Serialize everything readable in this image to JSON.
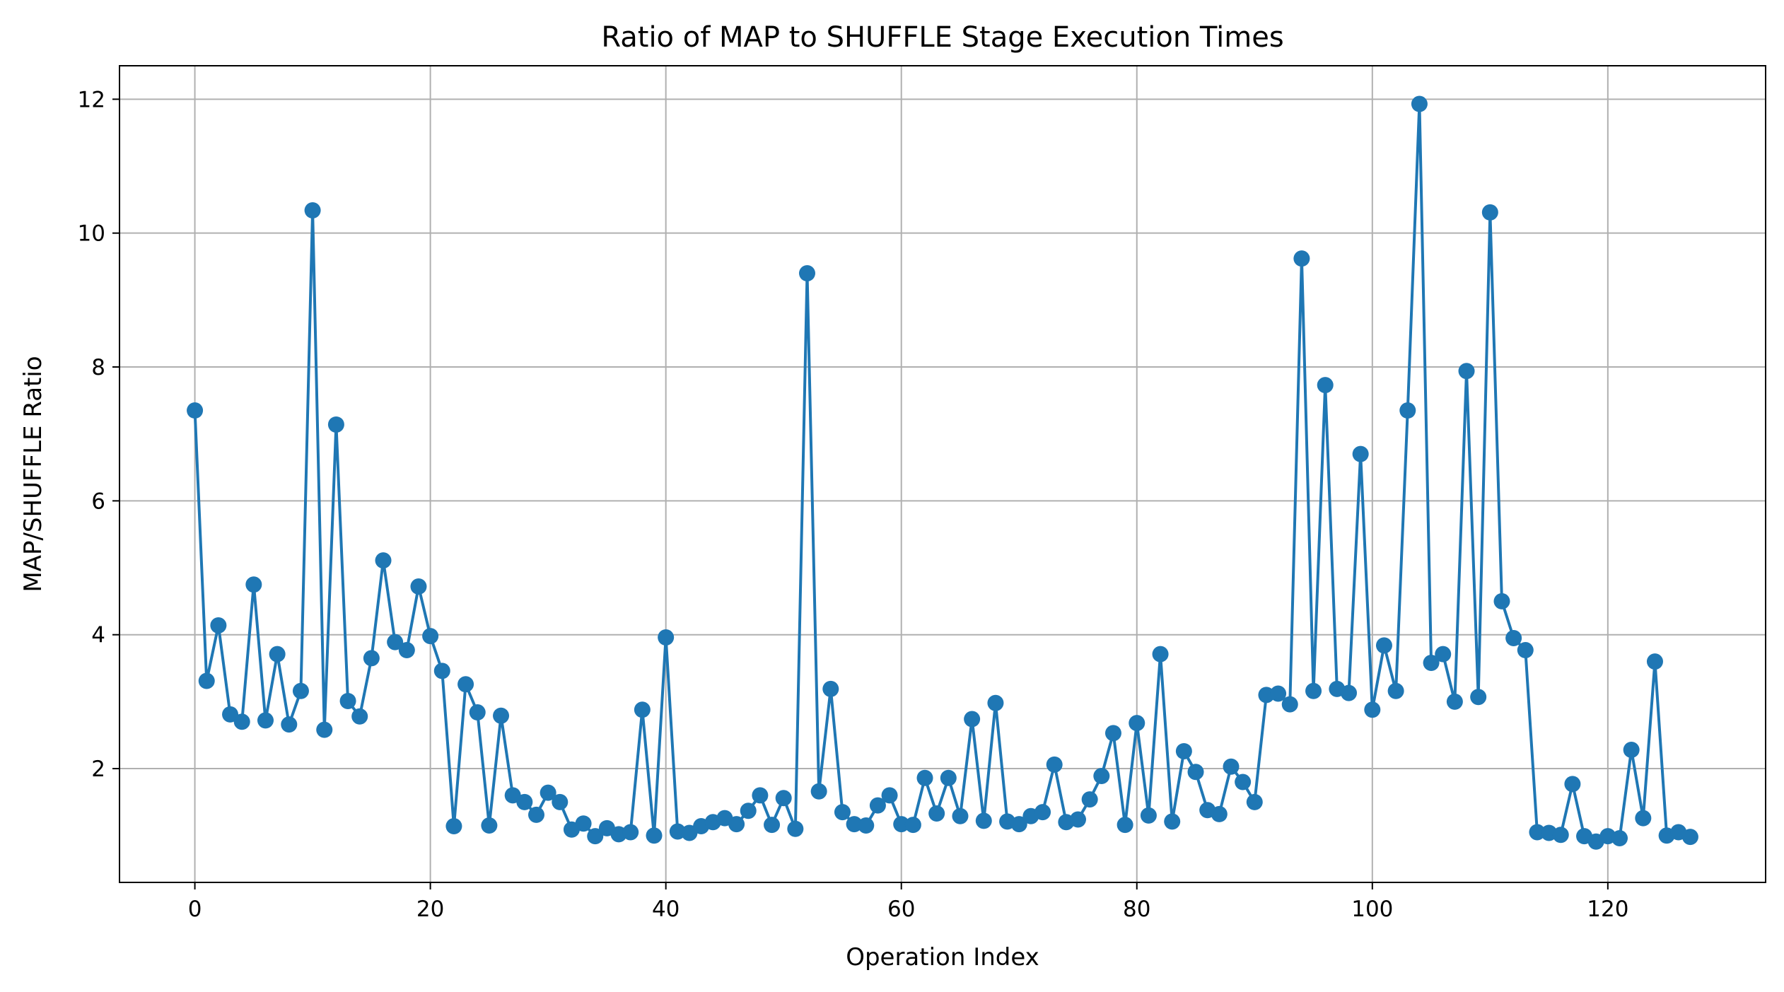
{
  "chart_data": {
    "type": "line",
    "title": "Ratio of MAP to SHUFFLE Stage Execution Times",
    "xlabel": "Operation Index",
    "ylabel": "MAP/SHUFFLE Ratio",
    "xlim": [
      -6.4,
      133.4
    ],
    "ylim": [
      0.3,
      12.5
    ],
    "xticks": [
      0,
      20,
      40,
      60,
      80,
      100,
      120
    ],
    "yticks": [
      2,
      4,
      6,
      8,
      10,
      12
    ],
    "grid": true,
    "marker": "circle",
    "colors": {
      "series": "#1f77b4"
    },
    "series": [
      {
        "x": [
          0,
          1,
          2,
          3,
          4,
          5,
          6,
          7,
          8,
          9,
          10,
          11,
          12,
          13,
          14,
          15,
          16,
          17,
          18,
          19,
          20,
          21,
          22,
          23,
          24,
          25,
          26,
          27,
          28,
          29,
          30,
          31,
          32,
          33,
          34,
          35,
          36,
          37,
          38,
          39,
          40,
          41,
          42,
          43,
          44,
          45,
          46,
          47,
          48,
          49,
          50,
          51,
          52,
          53,
          54,
          55,
          56,
          57,
          58,
          59,
          60,
          61,
          62,
          63,
          64,
          65,
          66,
          67,
          68,
          69,
          70,
          71,
          72,
          73,
          74,
          75,
          76,
          77,
          78,
          79,
          80,
          81,
          82,
          83,
          84,
          85,
          86,
          87,
          88,
          89,
          90,
          91,
          92,
          93,
          94,
          95,
          96,
          97,
          98,
          99,
          100,
          101,
          102,
          103,
          104,
          105,
          106,
          107,
          108,
          109,
          110,
          111,
          112,
          113,
          114,
          115,
          116,
          117,
          118,
          119,
          120,
          121,
          122,
          123,
          124,
          125,
          126,
          127
        ],
        "y": [
          7.35,
          3.31,
          4.14,
          2.81,
          2.7,
          4.75,
          2.72,
          3.71,
          2.66,
          3.16,
          10.34,
          2.58,
          7.14,
          3.01,
          2.78,
          3.65,
          5.11,
          3.89,
          3.77,
          4.72,
          3.98,
          3.46,
          1.14,
          3.26,
          2.84,
          1.15,
          2.79,
          1.6,
          1.5,
          1.31,
          1.64,
          1.5,
          1.09,
          1.18,
          0.99,
          1.11,
          1.02,
          1.05,
          2.88,
          1.0,
          3.96,
          1.06,
          1.04,
          1.14,
          1.2,
          1.26,
          1.17,
          1.37,
          1.6,
          1.16,
          1.56,
          1.1,
          9.4,
          1.66,
          3.19,
          1.35,
          1.17,
          1.15,
          1.45,
          1.6,
          1.17,
          1.16,
          1.86,
          1.33,
          1.86,
          1.29,
          2.74,
          1.22,
          2.98,
          1.21,
          1.17,
          1.29,
          1.35,
          2.06,
          1.2,
          1.24,
          1.54,
          1.89,
          2.53,
          1.16,
          2.68,
          1.3,
          3.71,
          1.21,
          2.26,
          1.95,
          1.38,
          1.32,
          2.03,
          1.8,
          1.5,
          3.1,
          3.12,
          2.96,
          9.62,
          3.16,
          7.73,
          3.19,
          3.13,
          6.7,
          2.88,
          3.84,
          3.16,
          7.35,
          11.93,
          3.58,
          3.71,
          3.0,
          7.94,
          3.07,
          10.31,
          4.5,
          3.95,
          3.77,
          1.05,
          1.04,
          1.01,
          1.77,
          0.99,
          0.91,
          0.99,
          0.96,
          2.28,
          1.26,
          3.6,
          1.0,
          1.05,
          0.98
        ]
      }
    ]
  }
}
